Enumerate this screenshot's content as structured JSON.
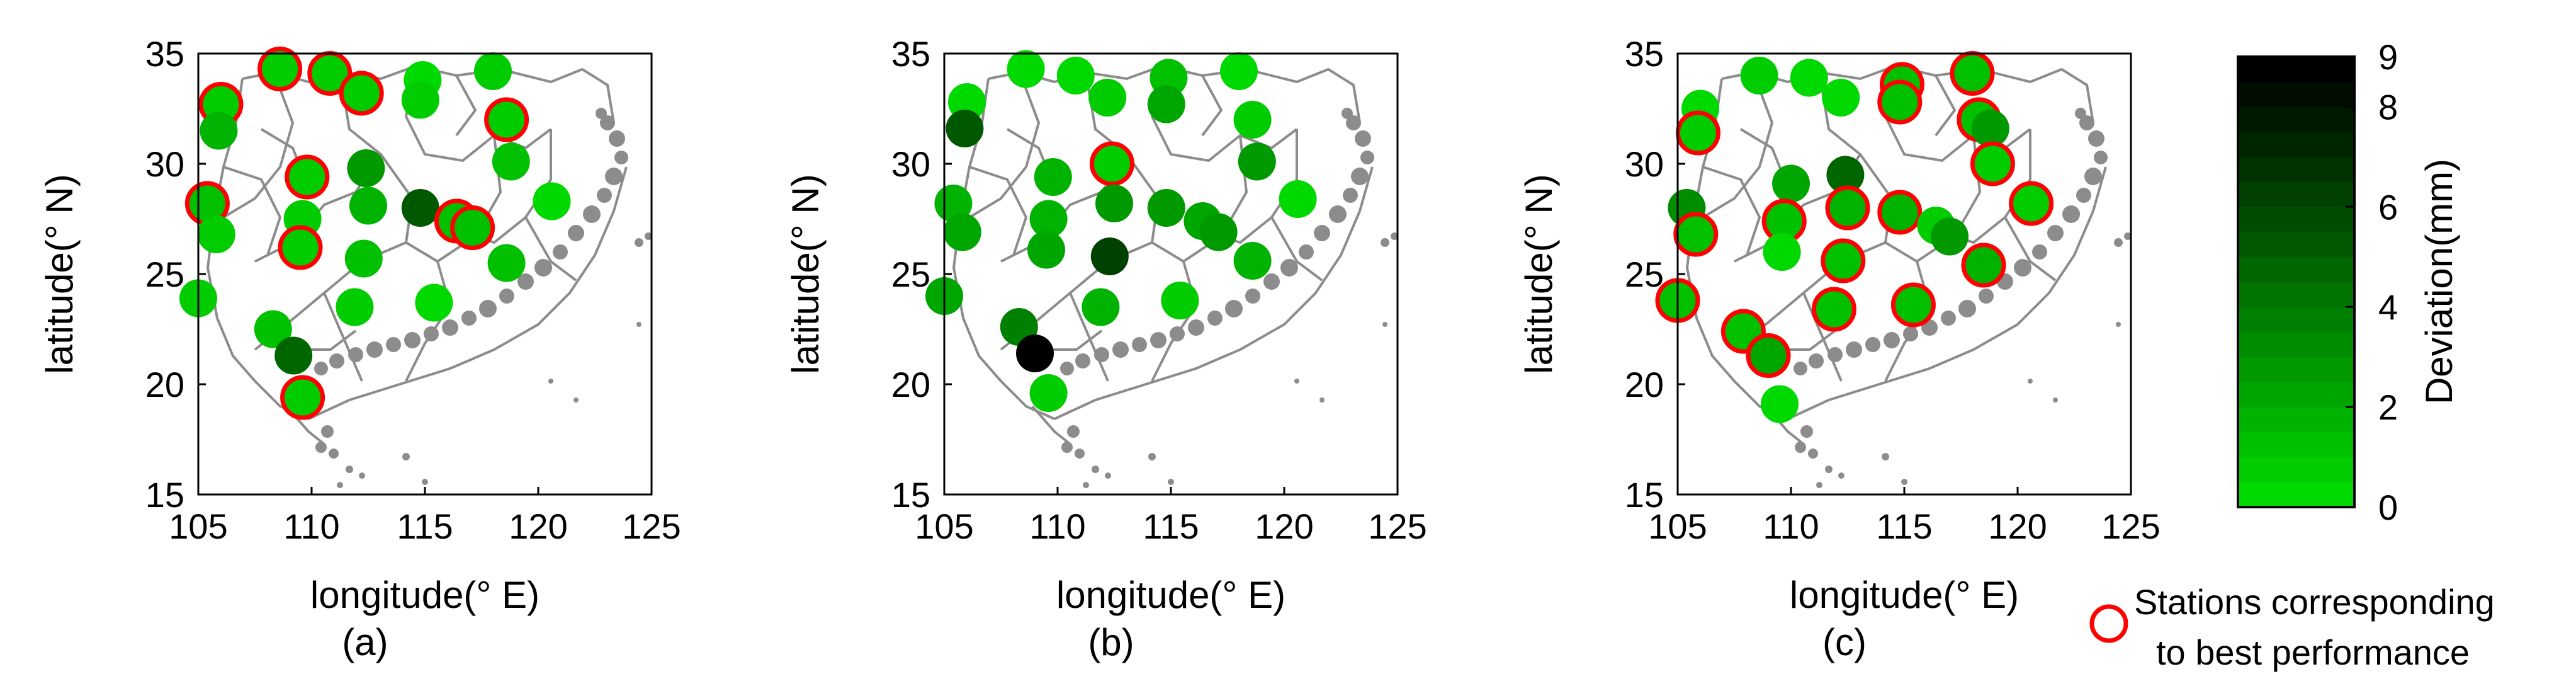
{
  "chart_data": [
    {
      "type": "scatter",
      "panel_label": "(a)",
      "xlabel": "longitude(° E)",
      "ylabel": "latitude(° N)",
      "xlim": [
        105,
        125
      ],
      "ylim": [
        15,
        35
      ],
      "xticks": [
        105,
        110,
        115,
        120,
        125
      ],
      "yticks": [
        15,
        20,
        25,
        30,
        35
      ],
      "points": [
        {
          "lon": 108.6,
          "lat": 34.3,
          "dev": 1.0,
          "best": true
        },
        {
          "lon": 110.8,
          "lat": 34.1,
          "dev": 1.0,
          "best": true
        },
        {
          "lon": 112.2,
          "lat": 33.2,
          "dev": 1.0,
          "best": true
        },
        {
          "lon": 106.0,
          "lat": 32.7,
          "dev": 1.0,
          "best": true
        },
        {
          "lon": 105.9,
          "lat": 31.5,
          "dev": 2.0,
          "best": false
        },
        {
          "lon": 114.9,
          "lat": 33.8,
          "dev": 0.5,
          "best": false
        },
        {
          "lon": 114.8,
          "lat": 32.9,
          "dev": 1.0,
          "best": false
        },
        {
          "lon": 118.0,
          "lat": 34.2,
          "dev": 1.0,
          "best": false
        },
        {
          "lon": 118.6,
          "lat": 32.0,
          "dev": 1.0,
          "best": true
        },
        {
          "lon": 118.8,
          "lat": 30.1,
          "dev": 1.5,
          "best": false
        },
        {
          "lon": 120.6,
          "lat": 28.3,
          "dev": 0.5,
          "best": false
        },
        {
          "lon": 105.4,
          "lat": 28.2,
          "dev": 1.5,
          "best": true
        },
        {
          "lon": 105.8,
          "lat": 26.8,
          "dev": 1.0,
          "best": false
        },
        {
          "lon": 109.8,
          "lat": 29.4,
          "dev": 1.0,
          "best": true
        },
        {
          "lon": 109.6,
          "lat": 27.5,
          "dev": 1.0,
          "best": false
        },
        {
          "lon": 109.5,
          "lat": 26.2,
          "dev": 1.0,
          "best": true
        },
        {
          "lon": 112.4,
          "lat": 29.8,
          "dev": 3.0,
          "best": false
        },
        {
          "lon": 112.5,
          "lat": 28.1,
          "dev": 2.0,
          "best": false
        },
        {
          "lon": 112.3,
          "lat": 25.7,
          "dev": 1.5,
          "best": false
        },
        {
          "lon": 114.8,
          "lat": 28.0,
          "dev": 5.5,
          "best": false
        },
        {
          "lon": 116.4,
          "lat": 27.4,
          "dev": 1.5,
          "best": true
        },
        {
          "lon": 117.1,
          "lat": 27.1,
          "dev": 1.5,
          "best": true
        },
        {
          "lon": 118.6,
          "lat": 25.5,
          "dev": 1.5,
          "best": false
        },
        {
          "lon": 115.4,
          "lat": 23.7,
          "dev": 0.5,
          "best": false
        },
        {
          "lon": 111.9,
          "lat": 23.5,
          "dev": 1.0,
          "best": false
        },
        {
          "lon": 105.0,
          "lat": 23.9,
          "dev": 1.0,
          "best": false
        },
        {
          "lon": 108.3,
          "lat": 22.5,
          "dev": 1.5,
          "best": false
        },
        {
          "lon": 109.2,
          "lat": 21.3,
          "dev": 5.0,
          "best": false
        },
        {
          "lon": 109.6,
          "lat": 19.4,
          "dev": 1.0,
          "best": true
        }
      ]
    },
    {
      "type": "scatter",
      "panel_label": "(b)",
      "xlabel": "longitude(° E)",
      "ylabel": "latitude(° N)",
      "xlim": [
        105,
        125
      ],
      "ylim": [
        15,
        35
      ],
      "xticks": [
        105,
        110,
        115,
        120,
        125
      ],
      "yticks": [
        15,
        20,
        25,
        30,
        35
      ],
      "points": [
        {
          "lon": 108.6,
          "lat": 34.3,
          "dev": 0.5,
          "best": false
        },
        {
          "lon": 110.8,
          "lat": 34.0,
          "dev": 0.5,
          "best": false
        },
        {
          "lon": 112.2,
          "lat": 33.0,
          "dev": 1.0,
          "best": false
        },
        {
          "lon": 106.0,
          "lat": 32.8,
          "dev": 0.5,
          "best": false
        },
        {
          "lon": 105.9,
          "lat": 31.6,
          "dev": 5.5,
          "best": false
        },
        {
          "lon": 114.9,
          "lat": 33.9,
          "dev": 1.5,
          "best": false
        },
        {
          "lon": 114.8,
          "lat": 32.7,
          "dev": 2.5,
          "best": false
        },
        {
          "lon": 118.0,
          "lat": 34.2,
          "dev": 0.5,
          "best": false
        },
        {
          "lon": 118.6,
          "lat": 32.0,
          "dev": 1.0,
          "best": false
        },
        {
          "lon": 118.8,
          "lat": 30.1,
          "dev": 3.0,
          "best": false
        },
        {
          "lon": 120.6,
          "lat": 28.4,
          "dev": 0.5,
          "best": false
        },
        {
          "lon": 105.4,
          "lat": 28.2,
          "dev": 2.0,
          "best": false
        },
        {
          "lon": 105.8,
          "lat": 26.9,
          "dev": 2.5,
          "best": false
        },
        {
          "lon": 109.8,
          "lat": 29.4,
          "dev": 2.0,
          "best": false
        },
        {
          "lon": 109.6,
          "lat": 27.5,
          "dev": 2.0,
          "best": false
        },
        {
          "lon": 109.5,
          "lat": 26.1,
          "dev": 2.5,
          "best": false
        },
        {
          "lon": 112.4,
          "lat": 30.0,
          "dev": 1.0,
          "best": true
        },
        {
          "lon": 112.5,
          "lat": 28.2,
          "dev": 3.0,
          "best": false
        },
        {
          "lon": 112.3,
          "lat": 25.8,
          "dev": 6.5,
          "best": false
        },
        {
          "lon": 114.8,
          "lat": 28.0,
          "dev": 3.0,
          "best": false
        },
        {
          "lon": 116.4,
          "lat": 27.4,
          "dev": 2.5,
          "best": false
        },
        {
          "lon": 117.1,
          "lat": 26.9,
          "dev": 3.0,
          "best": false
        },
        {
          "lon": 118.6,
          "lat": 25.6,
          "dev": 2.0,
          "best": false
        },
        {
          "lon": 115.4,
          "lat": 23.8,
          "dev": 1.0,
          "best": false
        },
        {
          "lon": 111.9,
          "lat": 23.5,
          "dev": 2.0,
          "best": false
        },
        {
          "lon": 105.0,
          "lat": 24.0,
          "dev": 2.5,
          "best": false
        },
        {
          "lon": 108.3,
          "lat": 22.6,
          "dev": 4.0,
          "best": false
        },
        {
          "lon": 109.0,
          "lat": 21.4,
          "dev": 9.0,
          "best": false
        },
        {
          "lon": 109.6,
          "lat": 19.6,
          "dev": 1.0,
          "best": false
        }
      ]
    },
    {
      "type": "scatter",
      "panel_label": "(c)",
      "xlabel": "longitude(° E)",
      "ylabel": "latitude(° N)",
      "xlim": [
        105,
        125
      ],
      "ylim": [
        15,
        35
      ],
      "xticks": [
        105,
        110,
        115,
        120,
        125
      ],
      "yticks": [
        15,
        20,
        25,
        30,
        35
      ],
      "points": [
        {
          "lon": 108.6,
          "lat": 34.0,
          "dev": 1.0,
          "best": false
        },
        {
          "lon": 110.8,
          "lat": 33.9,
          "dev": 0.5,
          "best": false
        },
        {
          "lon": 112.2,
          "lat": 33.0,
          "dev": 0.5,
          "best": false
        },
        {
          "lon": 106.0,
          "lat": 32.5,
          "dev": 0.5,
          "best": false
        },
        {
          "lon": 105.9,
          "lat": 31.4,
          "dev": 1.0,
          "best": true
        },
        {
          "lon": 114.9,
          "lat": 33.6,
          "dev": 1.5,
          "best": true
        },
        {
          "lon": 114.8,
          "lat": 32.8,
          "dev": 1.5,
          "best": true
        },
        {
          "lon": 118.0,
          "lat": 34.1,
          "dev": 1.5,
          "best": true
        },
        {
          "lon": 118.3,
          "lat": 32.0,
          "dev": 1.5,
          "best": true
        },
        {
          "lon": 118.8,
          "lat": 31.6,
          "dev": 3.0,
          "best": false
        },
        {
          "lon": 118.9,
          "lat": 30.0,
          "dev": 1.0,
          "best": true
        },
        {
          "lon": 120.6,
          "lat": 28.2,
          "dev": 1.0,
          "best": true
        },
        {
          "lon": 105.4,
          "lat": 28.0,
          "dev": 3.5,
          "best": false
        },
        {
          "lon": 105.8,
          "lat": 26.8,
          "dev": 1.5,
          "best": true
        },
        {
          "lon": 110.0,
          "lat": 29.1,
          "dev": 2.5,
          "best": false
        },
        {
          "lon": 109.7,
          "lat": 27.4,
          "dev": 1.5,
          "best": true
        },
        {
          "lon": 109.6,
          "lat": 26.0,
          "dev": 0.5,
          "best": false
        },
        {
          "lon": 112.4,
          "lat": 29.5,
          "dev": 5.0,
          "best": false
        },
        {
          "lon": 112.5,
          "lat": 28.0,
          "dev": 2.0,
          "best": true
        },
        {
          "lon": 112.3,
          "lat": 25.6,
          "dev": 1.5,
          "best": true
        },
        {
          "lon": 114.8,
          "lat": 27.8,
          "dev": 2.0,
          "best": true
        },
        {
          "lon": 116.4,
          "lat": 27.2,
          "dev": 1.0,
          "best": false
        },
        {
          "lon": 117.0,
          "lat": 26.7,
          "dev": 3.0,
          "best": false
        },
        {
          "lon": 118.5,
          "lat": 25.4,
          "dev": 2.0,
          "best": true
        },
        {
          "lon": 115.4,
          "lat": 23.6,
          "dev": 1.5,
          "best": true
        },
        {
          "lon": 111.9,
          "lat": 23.4,
          "dev": 1.5,
          "best": true
        },
        {
          "lon": 105.0,
          "lat": 23.8,
          "dev": 1.5,
          "best": true
        },
        {
          "lon": 107.9,
          "lat": 22.4,
          "dev": 1.5,
          "best": true
        },
        {
          "lon": 109.0,
          "lat": 21.3,
          "dev": 2.5,
          "best": true
        },
        {
          "lon": 109.5,
          "lat": 19.1,
          "dev": 0.5,
          "best": false
        }
      ]
    }
  ],
  "colorbar": {
    "label": "Deviation(mm)",
    "min": 0,
    "max": 9,
    "levels": 18,
    "ticks": [
      0,
      2,
      4,
      6,
      8,
      9
    ],
    "color_low": "#00e600",
    "color_high": "#000000"
  },
  "legend": {
    "marker_color": "#ff0000",
    "text_line1": "Stations corresponding",
    "text_line2": "to best performance"
  },
  "basemap": {
    "boundary_color": "#8c8c8c"
  }
}
